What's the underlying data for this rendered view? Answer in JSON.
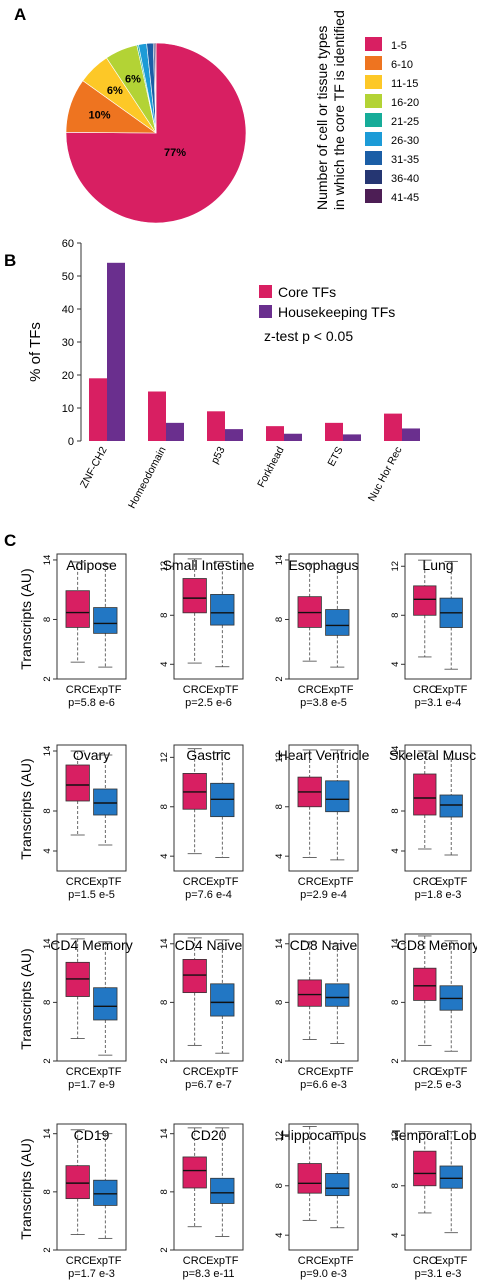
{
  "colors": {
    "crc": "#d81f62",
    "exptf": "#2277c4",
    "core": "#d81f62",
    "housekeeping": "#6a2f8e",
    "pie": [
      "#d81f62",
      "#ee7420",
      "#fdc827",
      "#b3d335",
      "#16ac99",
      "#1c9bd7",
      "#1b5ea6",
      "#253672",
      "#4d1e55"
    ]
  },
  "panel_labels": [
    "A",
    "B",
    "C"
  ],
  "chart_data": [
    {
      "type": "pie",
      "legend_title": [
        "Number of cell or tissue types",
        "in which the core TF is identified"
      ],
      "labels": [
        "1-5",
        "6-10",
        "11-15",
        "16-20",
        "21-25",
        "26-30",
        "31-35",
        "36-40",
        "41-45"
      ],
      "values": [
        77,
        10,
        6,
        6,
        0.3,
        1.5,
        1.2,
        0.3,
        0.2
      ],
      "slice_labels": [
        "77%",
        "10%",
        "6%",
        "6%",
        "",
        "",
        "",
        "",
        ""
      ]
    },
    {
      "type": "bar",
      "categories": [
        "ZNF-CH2",
        "Homeodomain",
        "p53",
        "Forkhead",
        "ETS",
        "Nuc Hor Rec"
      ],
      "series": [
        {
          "name": "Core TFs",
          "values": [
            19,
            15,
            9,
            4.5,
            5.5,
            8.3
          ]
        },
        {
          "name": "Housekeeping TFs",
          "values": [
            54,
            5.5,
            3.6,
            2.2,
            2,
            3.8
          ]
        }
      ],
      "ylabel": "% of TFs",
      "ylim": [
        0,
        60
      ],
      "yticks": [
        "0",
        "10",
        "20",
        "30",
        "40",
        "50",
        "60"
      ],
      "annotation": "z-test p < 0.05",
      "legend": "top-right"
    },
    {
      "type": "box",
      "ylabel": "Transcripts (AU)",
      "groups": [
        "CRC",
        "ExpTF"
      ],
      "panels": [
        {
          "title": "Adipose",
          "pvalue": "p=5.8 e-6",
          "yrange": [
            2,
            14.6
          ],
          "yticks": [
            {
              "v": 14,
              "l": "14"
            },
            {
              "v": 8,
              "l": "8"
            },
            {
              "v": 2,
              "l": "2"
            }
          ],
          "boxes": [
            {
              "min": 3.7,
              "q1": 7.2,
              "median": 8.7,
              "q3": 10.9,
              "max": 13.8
            },
            {
              "min": 3.2,
              "q1": 6.6,
              "median": 7.6,
              "q3": 9.2,
              "max": 13.6
            }
          ]
        },
        {
          "title": "Small Intestine",
          "pvalue": "p=2.5 e-6",
          "yrange": [
            2.8,
            13
          ],
          "yticks": [
            {
              "v": 12,
              "l": "12"
            },
            {
              "v": 8,
              "l": "8"
            },
            {
              "v": 4,
              "l": "4"
            }
          ],
          "boxes": [
            {
              "min": 4.1,
              "q1": 8.2,
              "median": 9.4,
              "q3": 11,
              "max": 12.6
            },
            {
              "min": 3.8,
              "q1": 7.2,
              "median": 8.2,
              "q3": 9.7,
              "max": 12.4
            }
          ]
        },
        {
          "title": "Esophagus",
          "pvalue": "p=3.8 e-5",
          "yrange": [
            2,
            14.6
          ],
          "yticks": [
            {
              "v": 14,
              "l": "14"
            },
            {
              "v": 8,
              "l": "8"
            },
            {
              "v": 2,
              "l": "2"
            }
          ],
          "boxes": [
            {
              "min": 3.8,
              "q1": 7.2,
              "median": 8.7,
              "q3": 10.3,
              "max": 13.6
            },
            {
              "min": 3.2,
              "q1": 6.4,
              "median": 7.4,
              "q3": 9,
              "max": 13.4
            }
          ]
        },
        {
          "title": "Lung",
          "pvalue": "p=3.1 e-4",
          "yrange": [
            2.8,
            13
          ],
          "yticks": [
            {
              "v": 12,
              "l": "12"
            },
            {
              "v": 8,
              "l": "8"
            },
            {
              "v": 4,
              "l": "4"
            }
          ],
          "boxes": [
            {
              "min": 4.6,
              "q1": 8,
              "median": 9.3,
              "q3": 10.4,
              "max": 12.5
            },
            {
              "min": 3.6,
              "q1": 7,
              "median": 8.2,
              "q3": 9.4,
              "max": 12.4
            }
          ]
        },
        {
          "title": "Ovary",
          "pvalue": "p=1.5 e-5",
          "yrange": [
            2,
            14.6
          ],
          "yticks": [
            {
              "v": 14,
              "l": "14"
            },
            {
              "v": 8,
              "l": "8"
            },
            {
              "v": 4,
              "l": "4"
            }
          ],
          "boxes": [
            {
              "min": 5.6,
              "q1": 9,
              "median": 10.6,
              "q3": 12.6,
              "max": 14
            },
            {
              "min": 4.6,
              "q1": 7.6,
              "median": 8.8,
              "q3": 10.2,
              "max": 13.6
            }
          ]
        },
        {
          "title": "Gastric",
          "pvalue": "p=7.6 e-4",
          "yrange": [
            2.8,
            13
          ],
          "yticks": [
            {
              "v": 12,
              "l": "12"
            },
            {
              "v": 8,
              "l": "8"
            },
            {
              "v": 4,
              "l": "4"
            }
          ],
          "boxes": [
            {
              "min": 4.2,
              "q1": 7.8,
              "median": 9.2,
              "q3": 10.7,
              "max": 12.7
            },
            {
              "min": 3.9,
              "q1": 7.2,
              "median": 8.6,
              "q3": 9.9,
              "max": 12.4
            }
          ]
        },
        {
          "title": "Heart Ventricle",
          "pvalue": "p=2.9 e-4",
          "yrange": [
            2.8,
            13
          ],
          "yticks": [
            {
              "v": 12,
              "l": "12"
            },
            {
              "v": 8,
              "l": "8"
            },
            {
              "v": 4,
              "l": "4"
            }
          ],
          "boxes": [
            {
              "min": 3.9,
              "q1": 8,
              "median": 9.2,
              "q3": 10.4,
              "max": 12.6
            },
            {
              "min": 3.7,
              "q1": 7.6,
              "median": 8.6,
              "q3": 10.1,
              "max": 12.6
            }
          ]
        },
        {
          "title": "Skeletal Muscle",
          "pvalue": "p=1.8 e-3",
          "yrange": [
            2,
            14.6
          ],
          "yticks": [
            {
              "v": 14,
              "l": "14"
            },
            {
              "v": 8,
              "l": "8"
            },
            {
              "v": 4,
              "l": "4"
            }
          ],
          "boxes": [
            {
              "min": 4.2,
              "q1": 7.6,
              "median": 9.3,
              "q3": 11.7,
              "max": 14
            },
            {
              "min": 3.6,
              "q1": 7.4,
              "median": 8.6,
              "q3": 9.6,
              "max": 13.2
            }
          ]
        },
        {
          "title": "CD4 Memory",
          "pvalue": "p=1.7 e-9",
          "yrange": [
            2,
            15
          ],
          "yticks": [
            {
              "v": 14,
              "l": "14"
            },
            {
              "v": 8,
              "l": "8"
            },
            {
              "v": 2,
              "l": "2"
            }
          ],
          "boxes": [
            {
              "min": 4.3,
              "q1": 8.6,
              "median": 10.4,
              "q3": 12.1,
              "max": 14.5
            },
            {
              "min": 2.6,
              "q1": 6.2,
              "median": 7.6,
              "q3": 9.5,
              "max": 14.2
            }
          ]
        },
        {
          "title": "CD4 Naive",
          "pvalue": "p=6.7 e-7",
          "yrange": [
            2,
            15
          ],
          "yticks": [
            {
              "v": 14,
              "l": "14"
            },
            {
              "v": 8,
              "l": "8"
            },
            {
              "v": 2,
              "l": "2"
            }
          ],
          "boxes": [
            {
              "min": 3.6,
              "q1": 9,
              "median": 10.8,
              "q3": 12.4,
              "max": 14.6
            },
            {
              "min": 2.8,
              "q1": 6.6,
              "median": 8,
              "q3": 9.9,
              "max": 14.4
            }
          ]
        },
        {
          "title": "CD8 Naive",
          "pvalue": "p=6.6 e-3",
          "yrange": [
            2,
            15
          ],
          "yticks": [
            {
              "v": 14,
              "l": "14"
            },
            {
              "v": 8,
              "l": "8"
            },
            {
              "v": 2,
              "l": "2"
            }
          ],
          "boxes": [
            {
              "min": 4.2,
              "q1": 7.6,
              "median": 8.8,
              "q3": 10.3,
              "max": 14.2
            },
            {
              "min": 3.8,
              "q1": 7.6,
              "median": 8.5,
              "q3": 9.9,
              "max": 14
            }
          ]
        },
        {
          "title": "CD8 Memory",
          "pvalue": "p=2.5 e-3",
          "yrange": [
            2,
            15
          ],
          "yticks": [
            {
              "v": 14,
              "l": "14"
            },
            {
              "v": 8,
              "l": "8"
            },
            {
              "v": 2,
              "l": "2"
            }
          ],
          "boxes": [
            {
              "min": 3.6,
              "q1": 8.2,
              "median": 9.7,
              "q3": 11.5,
              "max": 14.8
            },
            {
              "min": 3,
              "q1": 7.2,
              "median": 8.4,
              "q3": 9.7,
              "max": 14.3
            }
          ]
        },
        {
          "title": "CD19",
          "pvalue": "p=1.7 e-3",
          "yrange": [
            2,
            15
          ],
          "yticks": [
            {
              "v": 14,
              "l": "14"
            },
            {
              "v": 8,
              "l": "8"
            },
            {
              "v": 2,
              "l": "2"
            }
          ],
          "boxes": [
            {
              "min": 3.6,
              "q1": 7.3,
              "median": 8.9,
              "q3": 10.7,
              "max": 14.4
            },
            {
              "min": 3.2,
              "q1": 6.6,
              "median": 7.8,
              "q3": 9.2,
              "max": 14
            }
          ]
        },
        {
          "title": "CD20",
          "pvalue": "p=8.3 e-11",
          "yrange": [
            2,
            15
          ],
          "yticks": [
            {
              "v": 14,
              "l": "14"
            },
            {
              "v": 8,
              "l": "8"
            },
            {
              "v": 2,
              "l": "2"
            }
          ],
          "boxes": [
            {
              "min": 4.4,
              "q1": 8.4,
              "median": 10.2,
              "q3": 11.6,
              "max": 14.6
            },
            {
              "min": 3.4,
              "q1": 6.8,
              "median": 7.9,
              "q3": 9.4,
              "max": 14.6
            }
          ]
        },
        {
          "title": "Hippocampus",
          "pvalue": "p=9.0 e-3",
          "yrange": [
            2.8,
            13
          ],
          "yticks": [
            {
              "v": 12,
              "l": "12"
            },
            {
              "v": 8,
              "l": "8"
            },
            {
              "v": 4,
              "l": "4"
            }
          ],
          "boxes": [
            {
              "min": 5.2,
              "q1": 7.4,
              "median": 8.2,
              "q3": 9.8,
              "max": 12.8
            },
            {
              "min": 4.6,
              "q1": 7.2,
              "median": 7.8,
              "q3": 9,
              "max": 12.4
            }
          ]
        },
        {
          "title": "Temporal Lobe",
          "pvalue": "p=3.1 e-3",
          "yrange": [
            2.8,
            13
          ],
          "yticks": [
            {
              "v": 12,
              "l": "12"
            },
            {
              "v": 8,
              "l": "8"
            },
            {
              "v": 4,
              "l": "4"
            }
          ],
          "boxes": [
            {
              "min": 5.8,
              "q1": 8,
              "median": 9,
              "q3": 10.8,
              "max": 12.4
            },
            {
              "min": 4.2,
              "q1": 7.8,
              "median": 8.6,
              "q3": 9.6,
              "max": 12.4
            }
          ]
        }
      ]
    }
  ]
}
